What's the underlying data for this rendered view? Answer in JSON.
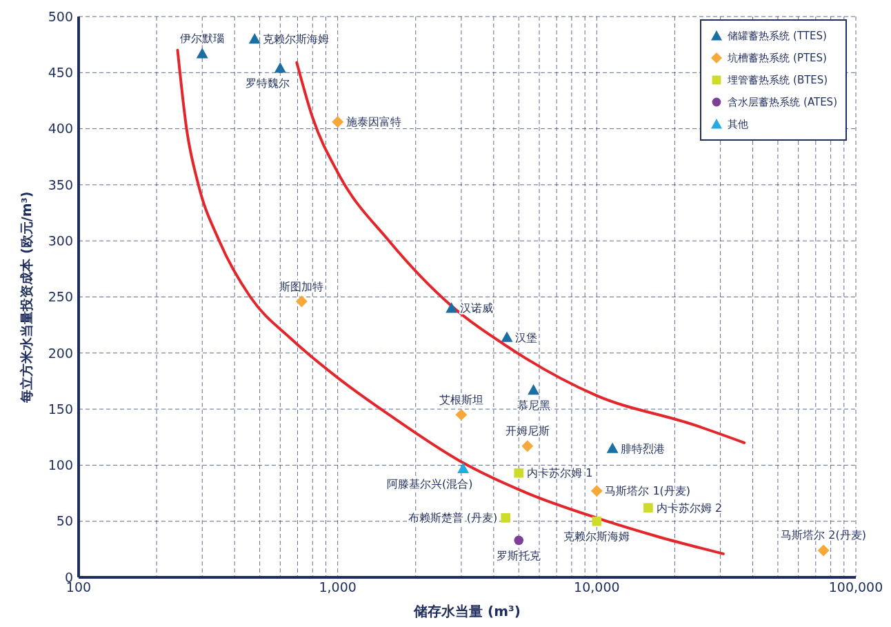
{
  "chart_data": {
    "type": "scatter",
    "xlabel": "储存水当量 (m³)",
    "ylabel": "每立方米水当量投资成本 (欧元/m³)",
    "log": "x",
    "grid": true,
    "legend": "top right",
    "xlim": [
      100,
      100000
    ],
    "xticks": [
      100,
      {
        "value": 200,
        "label": null
      },
      {
        "value": 300,
        "label": null
      },
      {
        "value": 400,
        "label": null
      },
      {
        "value": 500,
        "label": null
      },
      {
        "value": 600,
        "label": null
      },
      {
        "value": 700,
        "label": null
      },
      {
        "value": 800,
        "label": null
      },
      {
        "value": 900,
        "label": null
      },
      {
        "value": 1000,
        "label": "1,000"
      },
      {
        "value": 2000,
        "label": null
      },
      {
        "value": 3000,
        "label": null
      },
      {
        "value": 4000,
        "label": null
      },
      {
        "value": 5000,
        "label": null
      },
      {
        "value": 6000,
        "label": null
      },
      {
        "value": 7000,
        "label": null
      },
      {
        "value": 8000,
        "label": null
      },
      {
        "value": 9000,
        "label": null
      },
      {
        "value": 10000,
        "label": "10,000"
      },
      {
        "value": 20000,
        "label": null
      },
      {
        "value": 30000,
        "label": null
      },
      {
        "value": 40000,
        "label": null
      },
      {
        "value": 50000,
        "label": null
      },
      {
        "value": 60000,
        "label": null
      },
      {
        "value": 70000,
        "label": null
      },
      {
        "value": 80000,
        "label": null
      },
      {
        "value": 90000,
        "label": null
      },
      {
        "value": 100000,
        "label": "100,000"
      }
    ],
    "ylim": [
      0,
      500
    ],
    "yticks": [
      0,
      50,
      100,
      150,
      200,
      250,
      300,
      350,
      400,
      450,
      500
    ],
    "series": [
      {
        "name": "储罐蓄热系统 (TTES)",
        "color": "#1b6fa3",
        "marker": "triangle",
        "x": [
          300,
          478,
          600,
          2750,
          4500,
          5700,
          11500
        ],
        "values": [
          467,
          480,
          454,
          240,
          214,
          167,
          115
        ]
      },
      {
        "name": "坑槽蓄热系统 (PTES)",
        "color": "#f5a93b",
        "marker": "diamond",
        "x": [
          1000,
          726,
          3000,
          5400,
          10000,
          75000
        ],
        "values": [
          406,
          246,
          145,
          117,
          77,
          24
        ]
      },
      {
        "name": "埋管蓄热系统 (BTES)",
        "color": "#cddc29",
        "marker": "square",
        "x": [
          5000,
          4450,
          10000,
          15800
        ],
        "values": [
          93,
          53,
          50,
          62
        ]
      },
      {
        "name": "含水层蓄热系统 (ATES)",
        "color": "#7b3f98",
        "marker": "circle",
        "x": [
          5000
        ],
        "values": [
          33
        ]
      },
      {
        "name": "其他",
        "color": "#29a9e0",
        "marker": "triangle",
        "x": [
          3050
        ],
        "values": [
          97
        ]
      },
      {
        "type": "line",
        "color": "#e3262b",
        "marker": "none",
        "x": [
          241,
          261,
          290,
          349,
          460,
          666,
          1000,
          1578,
          3000,
          5400,
          10000,
          17400,
          30800
        ],
        "values": [
          470,
          400,
          350,
          300,
          250,
          212,
          178,
          145,
          103,
          75,
          53,
          36,
          21
        ]
      },
      {
        "type": "line",
        "color": "#e3262b",
        "marker": "none",
        "x": [
          695,
          800,
          1000,
          1578,
          2750,
          4500,
          10000,
          23700,
          37100
        ],
        "values": [
          459,
          410,
          361,
          300,
          242,
          206,
          162,
          136,
          120
        ]
      }
    ],
    "annotations": [
      {
        "text": "伊尔默瑙",
        "x": 300,
        "y": 467
      },
      {
        "text": "克赖尔斯海姆",
        "x": 478,
        "y": 480
      },
      {
        "text": "罗特魏尔",
        "x": 600,
        "y": 454
      },
      {
        "text": "施泰因富特",
        "x": 1000,
        "y": 406
      },
      {
        "text": "斯图加特",
        "x": 726,
        "y": 246
      },
      {
        "text": "汉诺威",
        "x": 2750,
        "y": 240
      },
      {
        "text": "汉堡",
        "x": 4500,
        "y": 214
      },
      {
        "text": "慕尼黑",
        "x": 5700,
        "y": 167
      },
      {
        "text": "艾根斯坦",
        "x": 3000,
        "y": 145
      },
      {
        "text": "开姆尼斯",
        "x": 5400,
        "y": 117
      },
      {
        "text": "腓特烈港",
        "x": 11500,
        "y": 115
      },
      {
        "text": "阿滕基尔兴(混合)",
        "x": 3050,
        "y": 97
      },
      {
        "text": "内卡苏尔姆 1",
        "x": 5000,
        "y": 93
      },
      {
        "text": "马斯塔尔 1(丹麦)",
        "x": 10000,
        "y": 77
      },
      {
        "text": "布赖斯楚普 (丹麦)",
        "x": 4450,
        "y": 53
      },
      {
        "text": "内卡苏尔姆 2",
        "x": 15800,
        "y": 62
      },
      {
        "text": "克赖尔斯海姆",
        "x": 10000,
        "y": 50
      },
      {
        "text": "罗斯托克",
        "x": 5000,
        "y": 33
      },
      {
        "text": "马斯塔尔 2(丹麦)",
        "x": 75000,
        "y": 24
      }
    ]
  }
}
